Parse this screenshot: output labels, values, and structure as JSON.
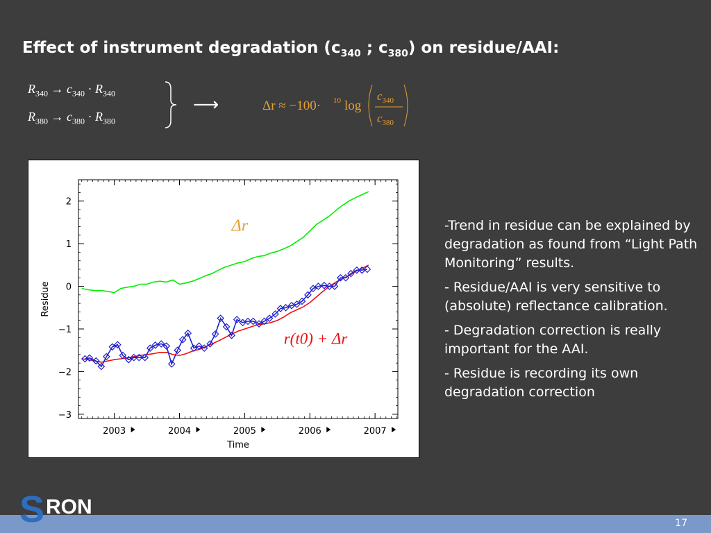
{
  "slide": {
    "title_pre": "Effect of instrument degradation (c",
    "title_sub1": "340",
    "title_mid": " ; c",
    "title_sub2": "380",
    "title_post": ") on residue/AAI:",
    "page_number": "17",
    "logo_text": "RON",
    "logo_initial": "S"
  },
  "equations": {
    "line1": {
      "R": "R",
      "sub_a": "340",
      "arrow": " → ",
      "c": "c",
      "sub_b": "340",
      "dot": " · ",
      "R2": "R",
      "sub_c": "340"
    },
    "line2": {
      "R": "R",
      "sub_a": "380",
      "arrow": " → ",
      "c": "c",
      "sub_b": "380",
      "dot": " · ",
      "R2": "R",
      "sub_c": "380"
    },
    "result_lhs": "Δr ≈ −100·",
    "result_sup": "10",
    "result_log": "log",
    "result_num": "c340",
    "result_den": "c380"
  },
  "bullets": [
    "-Trend in residue can be explained by degradation as found from “Light Path Monitoring” results.",
    "- Residue/AAI is very sensitive to (absolute) reflectance calibration.",
    "- Degradation correction is really important for the AAI.",
    "- Residue is recording its own degradation correction"
  ],
  "colors": {
    "background": "#3d3d3d",
    "footer": "#7a98c8",
    "green": "#00ee00",
    "red": "#ee1010",
    "blue": "#2020cc",
    "annotation": "#e8a030"
  },
  "chart_data": {
    "type": "line",
    "xlabel": "Time",
    "ylabel": "Residue",
    "xlim": [
      2002.45,
      2007.35
    ],
    "ylim": [
      -3.1,
      2.5
    ],
    "xticks": [
      2003,
      2004,
      2005,
      2006,
      2007
    ],
    "xtick_labels": [
      "2003",
      "2004",
      "2005",
      "2006",
      "2007"
    ],
    "yticks": [
      -3,
      -2,
      -1,
      0,
      1,
      2
    ],
    "ytick_labels": [
      "−3",
      "−2",
      "−1",
      "0",
      "1",
      "2"
    ],
    "annotations": [
      {
        "text": "Δr",
        "color": "#e8a030",
        "x": 2004.8,
        "y": 1.3
      },
      {
        "text": "r(t0) + Δr",
        "color": "#ee1010",
        "x": 2005.6,
        "y": -1.35
      }
    ],
    "series": [
      {
        "color": "#00ee00",
        "x": [
          2002.5,
          2002.6,
          2002.7,
          2002.8,
          2002.9,
          2003.0,
          2003.1,
          2003.2,
          2003.3,
          2003.4,
          2003.5,
          2003.6,
          2003.7,
          2003.8,
          2003.9,
          2004.0,
          2004.1,
          2004.2,
          2004.3,
          2004.4,
          2004.5,
          2004.6,
          2004.7,
          2004.8,
          2004.9,
          2005.0,
          2005.1,
          2005.2,
          2005.3,
          2005.4,
          2005.5,
          2005.6,
          2005.7,
          2005.8,
          2005.9,
          2006.0,
          2006.1,
          2006.2,
          2006.3,
          2006.4,
          2006.5,
          2006.6,
          2006.7,
          2006.8,
          2006.9
        ],
        "y": [
          -0.05,
          -0.08,
          -0.1,
          -0.1,
          -0.12,
          -0.15,
          -0.05,
          -0.02,
          0.0,
          0.05,
          0.05,
          0.1,
          0.12,
          0.1,
          0.15,
          0.05,
          0.08,
          0.12,
          0.18,
          0.25,
          0.3,
          0.38,
          0.45,
          0.5,
          0.55,
          0.58,
          0.65,
          0.7,
          0.72,
          0.78,
          0.82,
          0.88,
          0.95,
          1.05,
          1.15,
          1.3,
          1.45,
          1.55,
          1.65,
          1.78,
          1.9,
          2.0,
          2.08,
          2.15,
          2.22
        ]
      },
      {
        "color": "#ee1010",
        "x": [
          2002.5,
          2002.6,
          2002.7,
          2002.8,
          2002.9,
          2003.0,
          2003.1,
          2003.2,
          2003.3,
          2003.4,
          2003.5,
          2003.6,
          2003.7,
          2003.8,
          2003.9,
          2004.0,
          2004.1,
          2004.2,
          2004.3,
          2004.4,
          2004.5,
          2004.6,
          2004.7,
          2004.8,
          2004.9,
          2005.0,
          2005.1,
          2005.2,
          2005.3,
          2005.4,
          2005.5,
          2005.6,
          2005.7,
          2005.8,
          2005.9,
          2006.0,
          2006.1,
          2006.2,
          2006.3,
          2006.4,
          2006.5,
          2006.6,
          2006.7,
          2006.8,
          2006.9
        ],
        "y": [
          -1.7,
          -1.72,
          -1.75,
          -1.78,
          -1.75,
          -1.72,
          -1.7,
          -1.68,
          -1.65,
          -1.62,
          -1.6,
          -1.58,
          -1.55,
          -1.55,
          -1.6,
          -1.62,
          -1.58,
          -1.52,
          -1.48,
          -1.42,
          -1.35,
          -1.28,
          -1.2,
          -1.12,
          -1.05,
          -1.0,
          -0.95,
          -0.9,
          -0.88,
          -0.85,
          -0.8,
          -0.72,
          -0.62,
          -0.55,
          -0.48,
          -0.38,
          -0.25,
          -0.12,
          0.0,
          0.1,
          0.18,
          0.25,
          0.35,
          0.42,
          0.5
        ]
      },
      {
        "color": "#2020cc",
        "x": [
          2002.55,
          2002.62,
          2002.72,
          2002.8,
          2002.88,
          2002.97,
          2003.05,
          2003.13,
          2003.22,
          2003.3,
          2003.38,
          2003.47,
          2003.55,
          2003.63,
          2003.72,
          2003.8,
          2003.88,
          2003.97,
          2004.05,
          2004.13,
          2004.22,
          2004.3,
          2004.38,
          2004.47,
          2004.55,
          2004.63,
          2004.72,
          2004.8,
          2004.88,
          2004.97,
          2005.05,
          2005.13,
          2005.22,
          2005.3,
          2005.38,
          2005.47,
          2005.55,
          2005.63,
          2005.72,
          2005.8,
          2005.88,
          2005.97,
          2006.05,
          2006.13,
          2006.22,
          2006.3,
          2006.38,
          2006.47,
          2006.55,
          2006.63,
          2006.72,
          2006.8,
          2006.88
        ],
        "y": [
          -1.7,
          -1.68,
          -1.75,
          -1.88,
          -1.65,
          -1.42,
          -1.37,
          -1.62,
          -1.72,
          -1.67,
          -1.67,
          -1.67,
          -1.45,
          -1.38,
          -1.35,
          -1.4,
          -1.82,
          -1.5,
          -1.25,
          -1.1,
          -1.45,
          -1.4,
          -1.45,
          -1.35,
          -1.12,
          -0.75,
          -0.95,
          -1.15,
          -0.78,
          -0.85,
          -0.82,
          -0.82,
          -0.88,
          -0.82,
          -0.75,
          -0.65,
          -0.52,
          -0.5,
          -0.45,
          -0.42,
          -0.35,
          -0.2,
          -0.05,
          0.0,
          0.02,
          0.0,
          0.0,
          0.2,
          0.2,
          0.3,
          0.38,
          0.38,
          0.4
        ]
      }
    ]
  }
}
